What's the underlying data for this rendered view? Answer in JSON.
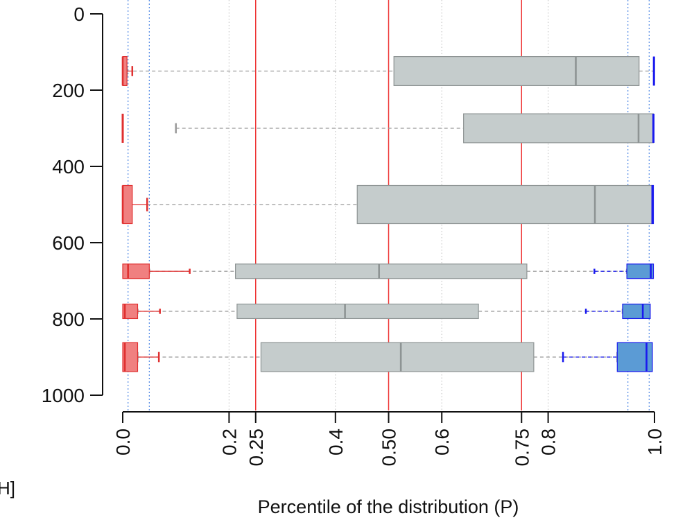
{
  "chart_data": {
    "type": "boxplot",
    "orientation": "horizontal",
    "xlabel": "Percentile of the distribution (P)",
    "ylabel_fragment": "H]",
    "xlim": [
      0,
      1
    ],
    "x_ticks": [
      0,
      0.2,
      0.25,
      0.4,
      0.5,
      0.6,
      0.75,
      0.8,
      1
    ],
    "x_tick_labels": [
      "0.0",
      "0.2",
      "0.25",
      "0.4",
      "0.50",
      "0.6",
      "0.75",
      "0.8",
      "1.0"
    ],
    "ylim": [
      0,
      1000
    ],
    "y_reversed": true,
    "y_ticks": [
      0,
      200,
      400,
      600,
      800,
      1000
    ],
    "y_tick_labels": [
      "0",
      "200",
      "400",
      "600",
      "800",
      "1000"
    ],
    "reference_lines": {
      "solid_red": [
        0.25,
        0.5,
        0.75
      ],
      "dotted_blue": [
        0.01,
        0.05,
        0.95,
        0.99
      ],
      "dotted_gray": [
        0.2,
        0.4,
        0.6,
        0.8
      ]
    },
    "colors": {
      "low": "#f08080",
      "low_edge": "#e03030",
      "mid": "#c5cccc",
      "mid_edge": "#8e9494",
      "high": "#5b9bd5",
      "high_edge": "#1a1aee",
      "ref_red": "#ee3333",
      "ref_blue": "#5a8fe6",
      "grid": "#c8c8c8"
    },
    "rows": [
      {
        "y": 150,
        "half_height": 38,
        "low": {
          "q1": 0,
          "med": 0,
          "q3": 0.008,
          "whisker_hi": 0.018
        },
        "mid": {
          "whisker_lo": 0.008,
          "q1": 0.51,
          "med": 0.852,
          "q3": 0.971,
          "whisker_hi": 0.999
        },
        "high": {
          "whisker_lo": 0.999,
          "q1": 0.999,
          "med": 0.999,
          "q3": 0.999
        }
      },
      {
        "y": 300,
        "half_height": 38,
        "low": {
          "q1": 0,
          "med": 0,
          "q3": 0,
          "whisker_hi": 0
        },
        "mid": {
          "whisker_lo": 0.1,
          "q1": 0.641,
          "med": 0.97,
          "q3": 0.998,
          "whisker_hi": 0.998
        },
        "high": {
          "whisker_lo": 0.998,
          "q1": 0.998,
          "med": 0.998,
          "q3": 0.998
        }
      },
      {
        "y": 500,
        "half_height": 50,
        "low": {
          "q1": 0,
          "med": 0,
          "q3": 0.018,
          "whisker_hi": 0.046
        },
        "mid": {
          "whisker_lo": 0.046,
          "q1": 0.441,
          "med": 0.888,
          "q3": 0.995,
          "whisker_hi": 0.995
        },
        "high": {
          "whisker_lo": 0.995,
          "q1": 0.995,
          "med": 0.997,
          "q3": 0.998
        }
      },
      {
        "y": 675,
        "half_height": 19,
        "low": {
          "q1": 0,
          "med": 0.01,
          "q3": 0.05,
          "whisker_hi": 0.126
        },
        "mid": {
          "whisker_lo": 0.05,
          "q1": 0.212,
          "med": 0.482,
          "q3": 0.76,
          "whisker_hi": 0.948
        },
        "high": {
          "whisker_lo": 0.887,
          "q1": 0.948,
          "med": 0.993,
          "q3": 0.998
        }
      },
      {
        "y": 780,
        "half_height": 19,
        "low": {
          "q1": 0,
          "med": 0.004,
          "q3": 0.028,
          "whisker_hi": 0.07
        },
        "mid": {
          "whisker_lo": 0.028,
          "q1": 0.215,
          "med": 0.418,
          "q3": 0.669,
          "whisker_hi": 0.94
        },
        "high": {
          "whisker_lo": 0.871,
          "q1": 0.94,
          "med": 0.978,
          "q3": 0.992
        }
      },
      {
        "y": 900,
        "half_height": 38,
        "low": {
          "q1": 0,
          "med": 0.004,
          "q3": 0.028,
          "whisker_hi": 0.068
        },
        "mid": {
          "whisker_lo": 0.028,
          "q1": 0.26,
          "med": 0.523,
          "q3": 0.773,
          "whisker_hi": 0.93
        },
        "high": {
          "whisker_lo": 0.828,
          "q1": 0.93,
          "med": 0.985,
          "q3": 0.996
        }
      }
    ]
  }
}
